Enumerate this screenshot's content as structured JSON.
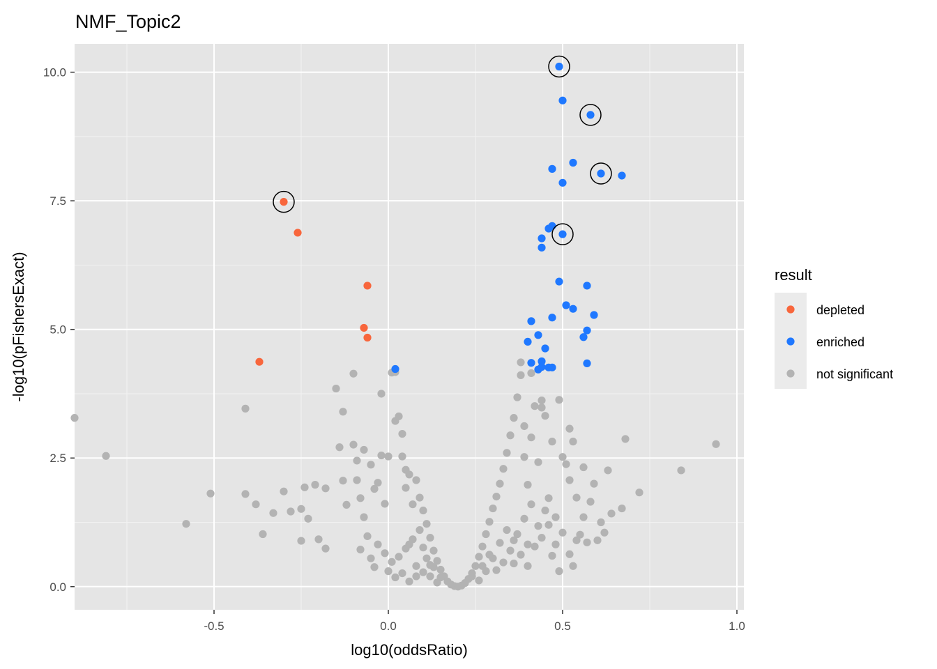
{
  "chart_data": {
    "type": "scatter",
    "title": "NMF_Topic2",
    "xlabel": "log10(oddsRatio)",
    "ylabel": "-log10(pFishersExact)",
    "xlim": [
      -0.9,
      1.02
    ],
    "ylim": [
      -0.45,
      10.55
    ],
    "x_ticks": [
      -0.5,
      0.0,
      0.5,
      1.0
    ],
    "x_tick_labels": [
      "-0.5",
      "0.0",
      "0.5",
      "1.0"
    ],
    "y_ticks": [
      0.0,
      2.5,
      5.0,
      7.5,
      10.0
    ],
    "y_tick_labels": [
      "0.0",
      "2.5",
      "5.0",
      "7.5",
      "10.0"
    ],
    "grid": true,
    "panel_background": "#e5e5e5",
    "legend": {
      "title": "result",
      "placement": "right",
      "entries": [
        {
          "label": "depleted",
          "color": "#f8663c"
        },
        {
          "label": "enriched",
          "color": "#1f78ff"
        },
        {
          "label": "not significant",
          "color": "#b3b3b3"
        }
      ]
    },
    "series": [
      {
        "name": "depleted",
        "color": "#f8663c",
        "points": [
          [
            -0.3,
            7.48
          ],
          [
            -0.26,
            6.88
          ],
          [
            -0.06,
            5.85
          ],
          [
            -0.07,
            5.03
          ],
          [
            -0.06,
            4.84
          ],
          [
            -0.37,
            4.37
          ]
        ]
      },
      {
        "name": "enriched",
        "color": "#1f78ff",
        "points": [
          [
            0.49,
            10.11
          ],
          [
            0.5,
            9.45
          ],
          [
            0.58,
            9.17
          ],
          [
            0.53,
            8.24
          ],
          [
            0.47,
            8.12
          ],
          [
            0.61,
            8.03
          ],
          [
            0.67,
            7.99
          ],
          [
            0.5,
            7.85
          ],
          [
            0.47,
            7.01
          ],
          [
            0.46,
            6.96
          ],
          [
            0.5,
            6.85
          ],
          [
            0.44,
            6.77
          ],
          [
            0.44,
            6.59
          ],
          [
            0.49,
            5.93
          ],
          [
            0.57,
            5.85
          ],
          [
            0.51,
            5.47
          ],
          [
            0.53,
            5.4
          ],
          [
            0.59,
            5.28
          ],
          [
            0.47,
            5.23
          ],
          [
            0.41,
            5.16
          ],
          [
            0.57,
            4.98
          ],
          [
            0.43,
            4.89
          ],
          [
            0.56,
            4.85
          ],
          [
            0.4,
            4.76
          ],
          [
            0.45,
            4.63
          ],
          [
            0.44,
            4.38
          ],
          [
            0.41,
            4.35
          ],
          [
            0.57,
            4.34
          ],
          [
            0.44,
            4.27
          ],
          [
            0.46,
            4.26
          ],
          [
            0.47,
            4.26
          ],
          [
            0.43,
            4.22
          ],
          [
            0.02,
            4.23
          ]
        ]
      },
      {
        "name": "not significant",
        "color": "#b3b3b3",
        "points": [
          [
            -0.9,
            3.28
          ],
          [
            -0.81,
            2.54
          ],
          [
            -0.58,
            1.22
          ],
          [
            -0.51,
            1.81
          ],
          [
            -0.41,
            3.46
          ],
          [
            -0.41,
            1.8
          ],
          [
            -0.38,
            1.6
          ],
          [
            -0.36,
            1.02
          ],
          [
            -0.33,
            1.43
          ],
          [
            -0.3,
            1.85
          ],
          [
            -0.28,
            1.46
          ],
          [
            -0.25,
            0.89
          ],
          [
            -0.25,
            1.51
          ],
          [
            -0.24,
            1.93
          ],
          [
            -0.23,
            1.32
          ],
          [
            -0.21,
            1.98
          ],
          [
            -0.2,
            0.92
          ],
          [
            -0.18,
            0.74
          ],
          [
            -0.18,
            1.91
          ],
          [
            -0.15,
            3.85
          ],
          [
            -0.14,
            2.71
          ],
          [
            -0.13,
            3.4
          ],
          [
            -0.13,
            2.06
          ],
          [
            -0.12,
            1.59
          ],
          [
            -0.1,
            4.14
          ],
          [
            -0.1,
            2.76
          ],
          [
            -0.09,
            2.45
          ],
          [
            -0.09,
            2.07
          ],
          [
            -0.08,
            1.72
          ],
          [
            -0.07,
            2.66
          ],
          [
            -0.07,
            1.35
          ],
          [
            -0.06,
            0.98
          ],
          [
            -0.05,
            2.37
          ],
          [
            -0.04,
            1.9
          ],
          [
            -0.03,
            2.02
          ],
          [
            -0.03,
            0.82
          ],
          [
            -0.02,
            3.75
          ],
          [
            -0.02,
            2.55
          ],
          [
            -0.01,
            1.61
          ],
          [
            0.0,
            2.53
          ],
          [
            0.01,
            4.16
          ],
          [
            0.02,
            4.17
          ],
          [
            0.02,
            3.22
          ],
          [
            0.03,
            3.31
          ],
          [
            0.04,
            2.97
          ],
          [
            0.04,
            2.53
          ],
          [
            0.05,
            2.27
          ],
          [
            0.05,
            1.92
          ],
          [
            0.06,
            2.18
          ],
          [
            0.07,
            1.6
          ],
          [
            0.08,
            2.07
          ],
          [
            0.09,
            1.73
          ],
          [
            0.1,
            1.48
          ],
          [
            0.11,
            1.22
          ],
          [
            0.12,
            0.95
          ],
          [
            0.13,
            0.7
          ],
          [
            0.14,
            0.5
          ],
          [
            0.15,
            0.33
          ],
          [
            0.16,
            0.2
          ],
          [
            0.17,
            0.1
          ],
          [
            0.18,
            0.04
          ],
          [
            0.19,
            0.01
          ],
          [
            0.2,
            0.0
          ],
          [
            0.21,
            0.02
          ],
          [
            0.22,
            0.07
          ],
          [
            0.23,
            0.15
          ],
          [
            0.24,
            0.26
          ],
          [
            0.25,
            0.4
          ],
          [
            0.26,
            0.58
          ],
          [
            0.27,
            0.78
          ],
          [
            0.28,
            1.02
          ],
          [
            0.29,
            1.26
          ],
          [
            0.3,
            1.52
          ],
          [
            0.31,
            1.75
          ],
          [
            0.32,
            2.0
          ],
          [
            0.33,
            2.29
          ],
          [
            0.34,
            2.6
          ],
          [
            0.35,
            2.94
          ],
          [
            0.36,
            3.28
          ],
          [
            0.37,
            3.68
          ],
          [
            0.38,
            4.11
          ],
          [
            0.38,
            4.36
          ],
          [
            0.39,
            3.12
          ],
          [
            0.39,
            2.52
          ],
          [
            0.4,
            1.98
          ],
          [
            0.41,
            2.9
          ],
          [
            0.41,
            4.15
          ],
          [
            0.42,
            3.51
          ],
          [
            0.43,
            2.42
          ],
          [
            0.44,
            3.62
          ],
          [
            0.44,
            3.48
          ],
          [
            0.45,
            3.32
          ],
          [
            0.46,
            1.72
          ],
          [
            0.47,
            2.82
          ],
          [
            0.48,
            1.35
          ],
          [
            0.49,
            3.63
          ],
          [
            0.5,
            2.52
          ],
          [
            0.51,
            2.38
          ],
          [
            0.52,
            3.07
          ],
          [
            0.52,
            2.07
          ],
          [
            0.53,
            2.82
          ],
          [
            0.54,
            1.73
          ],
          [
            0.55,
            1.01
          ],
          [
            0.56,
            2.32
          ],
          [
            0.57,
            0.86
          ],
          [
            0.58,
            1.65
          ],
          [
            0.59,
            2.0
          ],
          [
            0.61,
            1.25
          ],
          [
            0.63,
            2.26
          ],
          [
            0.64,
            1.42
          ],
          [
            0.67,
            1.52
          ],
          [
            0.68,
            2.87
          ],
          [
            0.72,
            1.83
          ],
          [
            0.84,
            2.26
          ],
          [
            0.94,
            2.77
          ],
          [
            0.1,
            0.76
          ],
          [
            0.08,
            0.4
          ],
          [
            0.06,
            0.82
          ],
          [
            0.04,
            0.26
          ],
          [
            0.12,
            0.2
          ],
          [
            0.14,
            0.08
          ],
          [
            0.26,
            0.12
          ],
          [
            0.28,
            0.3
          ],
          [
            0.3,
            0.55
          ],
          [
            0.32,
            0.85
          ],
          [
            0.34,
            1.1
          ],
          [
            0.36,
            0.9
          ],
          [
            0.38,
            0.62
          ],
          [
            0.4,
            0.4
          ],
          [
            0.42,
            0.78
          ],
          [
            0.44,
            0.95
          ],
          [
            0.46,
            1.2
          ],
          [
            0.48,
            0.82
          ],
          [
            0.5,
            1.05
          ],
          [
            0.52,
            0.63
          ],
          [
            0.54,
            0.9
          ],
          [
            0.56,
            1.35
          ],
          [
            0.6,
            0.9
          ],
          [
            0.62,
            1.05
          ],
          [
            -0.01,
            0.65
          ],
          [
            0.01,
            0.48
          ],
          [
            0.03,
            0.58
          ],
          [
            0.05,
            0.74
          ],
          [
            0.07,
            0.92
          ],
          [
            0.09,
            1.1
          ],
          [
            0.11,
            0.55
          ],
          [
            0.13,
            0.38
          ],
          [
            0.15,
            0.18
          ],
          [
            0.24,
            0.2
          ],
          [
            0.33,
            0.47
          ],
          [
            0.35,
            0.7
          ],
          [
            0.37,
            1.02
          ],
          [
            0.39,
            1.32
          ],
          [
            0.41,
            1.6
          ],
          [
            0.43,
            1.18
          ],
          [
            0.45,
            1.48
          ],
          [
            -0.05,
            0.55
          ],
          [
            -0.04,
            0.38
          ],
          [
            -0.08,
            0.72
          ],
          [
            0.0,
            0.3
          ],
          [
            0.02,
            0.18
          ],
          [
            0.06,
            0.1
          ],
          [
            0.08,
            0.2
          ],
          [
            0.1,
            0.28
          ],
          [
            0.12,
            0.42
          ],
          [
            0.27,
            0.4
          ],
          [
            0.29,
            0.62
          ],
          [
            0.31,
            0.32
          ],
          [
            0.36,
            0.45
          ],
          [
            0.4,
            0.82
          ],
          [
            0.47,
            0.6
          ],
          [
            0.49,
            0.3
          ],
          [
            0.53,
            0.4
          ]
        ]
      }
    ],
    "highlighted": [
      [
        0.49,
        10.11
      ],
      [
        0.58,
        9.17
      ],
      [
        0.61,
        8.03
      ],
      [
        -0.3,
        7.48
      ],
      [
        0.5,
        6.85
      ]
    ]
  }
}
